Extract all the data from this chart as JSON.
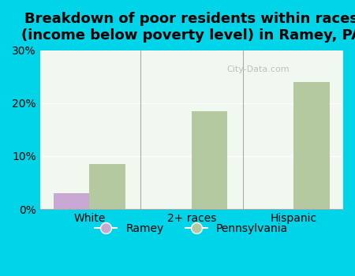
{
  "title": "Breakdown of poor residents within races\n(income below poverty level) in Ramey, PA",
  "categories": [
    "White",
    "2+ races",
    "Hispanic"
  ],
  "ramey_values": [
    3.0,
    0.0,
    0.0
  ],
  "pa_values": [
    8.5,
    18.5,
    24.0
  ],
  "ramey_color": "#c9a8d4",
  "pa_color": "#b5c9a0",
  "ylim": [
    0,
    30
  ],
  "yticks": [
    0,
    10,
    20,
    30
  ],
  "ytick_labels": [
    "0%",
    "10%",
    "20%",
    "30%"
  ],
  "background_color": "#00d4e8",
  "plot_bg_color": "#f0f8f0",
  "bar_width": 0.35,
  "legend_labels": [
    "Ramey",
    "Pennsylvania"
  ],
  "title_fontsize": 13,
  "tick_fontsize": 10,
  "legend_fontsize": 10,
  "watermark": "City-Data.com"
}
